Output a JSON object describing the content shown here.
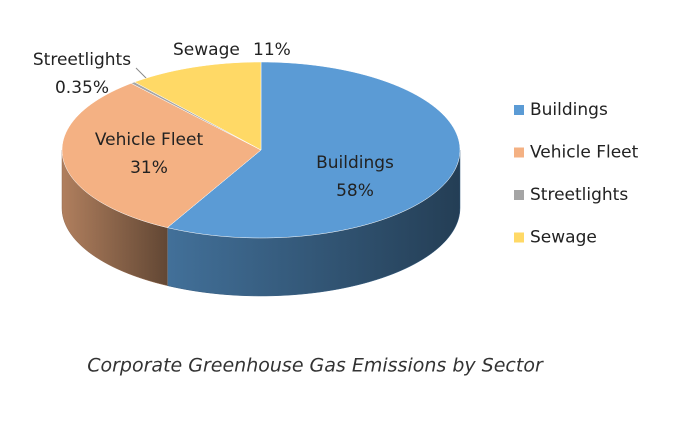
{
  "chart_data": {
    "type": "pie3d",
    "title": "Corporate Greenhouse Gas Emissions by Sector",
    "categories": [
      "Buildings",
      "Vehicle Fleet",
      "Streetlights",
      "Sewage"
    ],
    "values": [
      58,
      31,
      0.35,
      11
    ],
    "value_labels": [
      "58%",
      "31%",
      "0.35%",
      "11%"
    ],
    "colors": [
      "#5b9bd5",
      "#f4b183",
      "#a5a5a5",
      "#ffd966"
    ],
    "legend": "right"
  }
}
